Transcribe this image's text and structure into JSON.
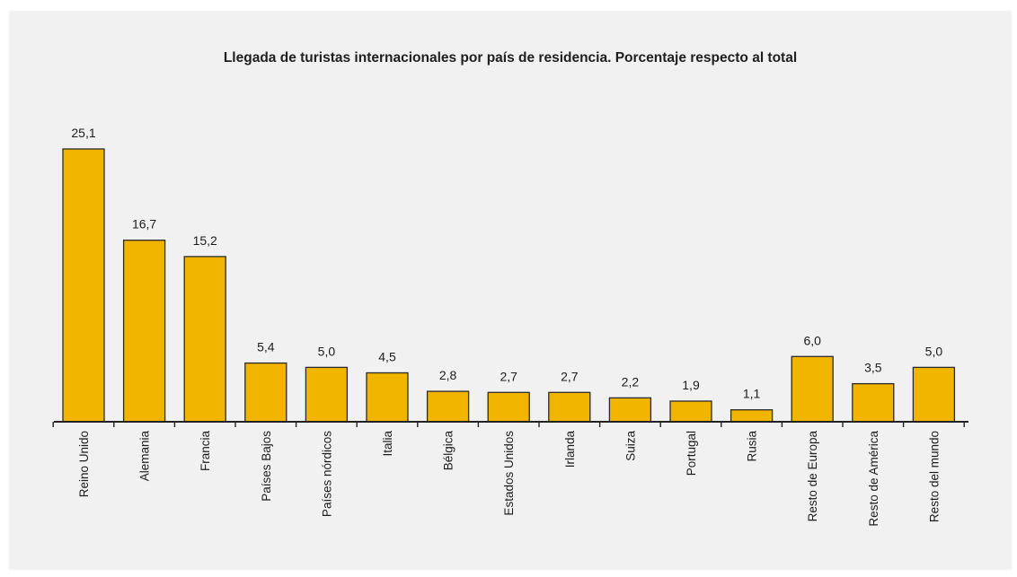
{
  "chart_data": {
    "type": "bar",
    "title": "Llegada de turistas internacionales por país de residencia. Porcentaje respecto al total",
    "xlabel": "",
    "ylabel": "",
    "categories": [
      "Reino Unido",
      "Alemania",
      "Francia",
      "Países Bajos",
      "Países nórdicos",
      "Italia",
      "Bélgica",
      "Estados Unidos",
      "Irlanda",
      "Suiza",
      "Portugal",
      "Rusia",
      "Resto de Europa",
      "Resto de América",
      "Resto del mundo"
    ],
    "values": [
      25.1,
      16.7,
      15.2,
      5.4,
      5.0,
      4.5,
      2.8,
      2.7,
      2.7,
      2.2,
      1.9,
      1.1,
      6.0,
      3.5,
      5.0
    ],
    "value_labels": [
      "25,1",
      "16,7",
      "15,2",
      "5,4",
      "5,0",
      "4,5",
      "2,8",
      "2,7",
      "2,7",
      "2,2",
      "1,9",
      "1,1",
      "6,0",
      "3,5",
      "5,0"
    ],
    "ylim": [
      0,
      25.1
    ],
    "grid": false,
    "legend": "none",
    "bar_color": "#f1b500"
  }
}
